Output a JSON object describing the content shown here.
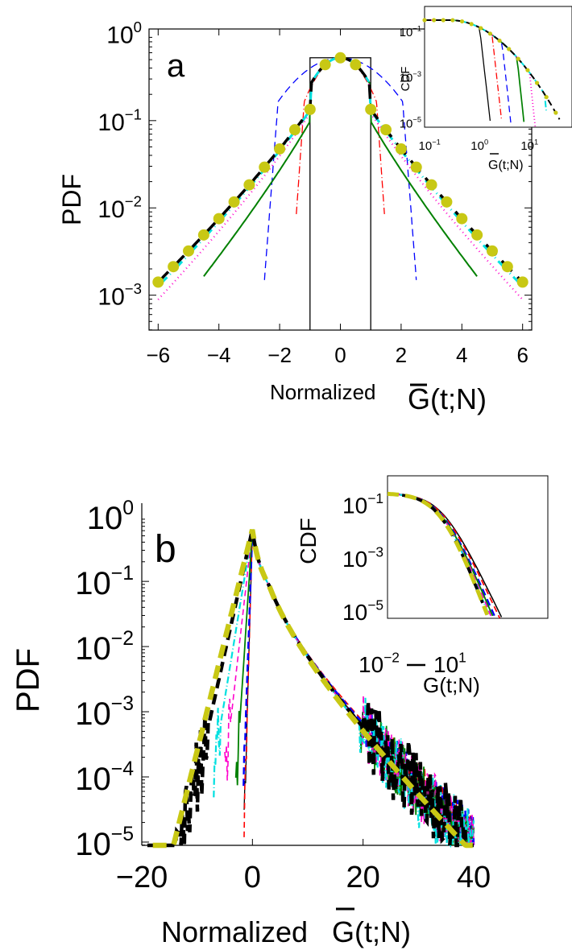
{
  "chart_data": [
    {
      "type": "line",
      "panel_label": "a",
      "ylabel": "PDF",
      "xlabel_prefix": "Normalized",
      "xlabel_symbol": "G(t;N)",
      "x_range": [
        -6.3,
        6.3
      ],
      "y_range_log10": [
        -3.4,
        0.05
      ],
      "y_scale": "log",
      "x_ticks": [
        "−6",
        "−4",
        "−2",
        "0",
        "2",
        "4",
        "6"
      ],
      "x_tick_values": [
        -6,
        -4,
        -2,
        0,
        2,
        4,
        6
      ],
      "y_tick_labels": [
        {
          "base": "10",
          "exp": "0"
        },
        {
          "base": "10",
          "exp": "−1"
        },
        {
          "base": "10",
          "exp": "−2"
        },
        {
          "base": "10",
          "exp": "−3"
        }
      ],
      "y_tick_values": [
        0,
        -1,
        -2,
        -3
      ],
      "series_colors": [
        "#000000",
        "#ff0000",
        "#0000ff",
        "#008000",
        "#ff00cc",
        "#00e0e0",
        "#000000",
        "#c8c814"
      ],
      "series_styles": [
        "solid",
        "dashdot",
        "dashed",
        "solid",
        "dotted",
        "dashdot",
        "dashed",
        "dots"
      ],
      "series_widths": [
        1.3,
        1.3,
        1.3,
        2.0,
        2.2,
        3.0,
        3.5,
        0
      ],
      "box_width_ratio": [
        1.0,
        0.42,
        0.52,
        0.62,
        0.72,
        0.78,
        0.82,
        0.83
      ],
      "series_x_cutoffs": [
        1.0,
        1.45,
        2.5,
        4.5,
        6.0,
        6.0,
        6.0,
        6.0
      ],
      "series_peak_log10": [
        -0.28,
        -0.28,
        -0.28,
        -0.28,
        -0.28,
        -0.28,
        -0.28,
        -0.28
      ],
      "tail_values_at_x6_log10": [
        null,
        null,
        null,
        -3.45,
        -3.05,
        -2.9,
        -2.85,
        -2.85
      ],
      "inset": {
        "ylabel": "CDF",
        "xlabel": "G(t;N)",
        "x_ticks": [
          {
            "base": "10",
            "exp": "−1"
          },
          {
            "base": "10",
            "exp": "0"
          },
          {
            "base": "10",
            "exp": "1"
          }
        ],
        "y_ticks": [
          {
            "base": "10",
            "exp": "−1"
          },
          {
            "base": "10",
            "exp": "−3"
          },
          {
            "base": "10",
            "exp": "−5"
          }
        ]
      }
    },
    {
      "type": "line",
      "panel_label": "b",
      "ylabel": "PDF",
      "xlabel_prefix": "Normalized",
      "xlabel_symbol": "G(t;N)",
      "x_range": [
        -20,
        40
      ],
      "y_range_log10": [
        -5.05,
        0.2
      ],
      "y_scale": "log",
      "x_ticks": [
        "−20",
        "0",
        "20",
        "40"
      ],
      "x_tick_values": [
        -20,
        0,
        20,
        40
      ],
      "y_tick_labels": [
        {
          "base": "10",
          "exp": "0"
        },
        {
          "base": "10",
          "exp": "−1"
        },
        {
          "base": "10",
          "exp": "−2"
        },
        {
          "base": "10",
          "exp": "−3"
        },
        {
          "base": "10",
          "exp": "−4"
        },
        {
          "base": "10",
          "exp": "−5"
        }
      ],
      "y_tick_values": [
        0,
        -1,
        -2,
        -3,
        -4,
        -5
      ],
      "series_colors": [
        "#000000",
        "#ff0000",
        "#0000ff",
        "#008000",
        "#ff00cc",
        "#00e0e0",
        "#000000",
        "#c8c814"
      ],
      "series_styles": [
        "solid",
        "dashed",
        "dashed",
        "solid",
        "dashed",
        "dashdot",
        "dashed",
        "dashed"
      ],
      "series_widths": [
        1.3,
        1.6,
        2.4,
        1.8,
        1.6,
        2.2,
        4.5,
        6.5
      ],
      "inset": {
        "ylabel": "CDF",
        "xlabel": "G(t;N)",
        "x_ticks": [
          {
            "base": "10",
            "exp": "−2"
          },
          {
            "base": "10",
            "exp": "1"
          }
        ],
        "y_ticks": [
          {
            "base": "10",
            "exp": "−1"
          },
          {
            "base": "10",
            "exp": "−3"
          },
          {
            "base": "10",
            "exp": "−5"
          }
        ]
      }
    }
  ]
}
